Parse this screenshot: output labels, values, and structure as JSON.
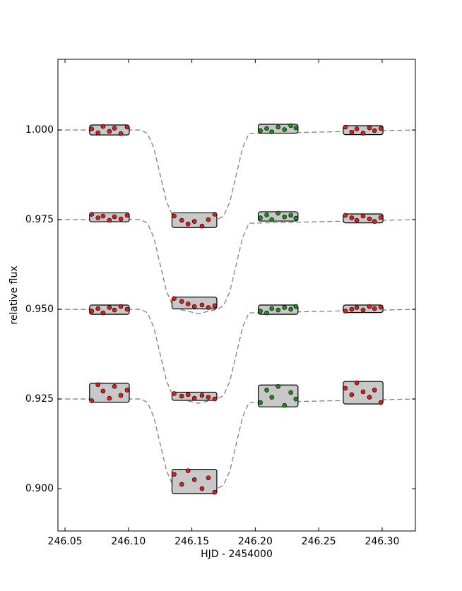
{
  "chart_data": {
    "type": "scatter",
    "xlabel": "HJD - 2454000",
    "ylabel": "relative flux",
    "xlim": [
      246.0444,
      246.3262
    ],
    "ylim": [
      0.8882,
      1.0197
    ],
    "xticks": [
      246.05,
      {
        "value": 246.1,
        "label": "246.10"
      },
      246.15,
      {
        "value": 246.2,
        "label": "246.20"
      },
      246.25,
      {
        "value": 246.3,
        "label": "246.30"
      }
    ],
    "yticks": [
      {
        "value": 0.9,
        "label": "0.900"
      },
      {
        "value": 0.925,
        "label": "0.925"
      },
      {
        "value": 0.95,
        "label": "0.950"
      },
      {
        "value": 0.975,
        "label": "0.975"
      },
      {
        "value": 1,
        "label": "1.000"
      }
    ],
    "series": [
      {
        "type": "line",
        "color": "#808080",
        "x": [
          246.044,
          246.11,
          246.115,
          246.12,
          246.125,
          246.13,
          246.135,
          246.14,
          246.155,
          246.17,
          246.175,
          246.18,
          246.185,
          246.19,
          246.195,
          246.326
        ],
        "values": [
          1,
          1,
          0.999,
          0.995,
          0.9875,
          0.98,
          0.976,
          0.975,
          0.9738,
          0.975,
          0.976,
          0.98,
          0.9875,
          0.995,
          0.999,
          1
        ]
      },
      {
        "type": "line",
        "color": "#808080",
        "x": [
          246.044,
          246.11,
          246.115,
          246.12,
          246.125,
          246.13,
          246.135,
          246.14,
          246.155,
          246.17,
          246.175,
          246.18,
          246.185,
          246.19,
          246.195,
          246.326
        ],
        "values": [
          0.975,
          0.975,
          0.974,
          0.97,
          0.9625,
          0.955,
          0.951,
          0.95,
          0.9488,
          0.95,
          0.951,
          0.955,
          0.9625,
          0.97,
          0.974,
          0.975
        ]
      },
      {
        "type": "line",
        "color": "#808080",
        "x": [
          246.044,
          246.11,
          246.115,
          246.12,
          246.125,
          246.13,
          246.135,
          246.14,
          246.155,
          246.17,
          246.175,
          246.18,
          246.185,
          246.19,
          246.195,
          246.326
        ],
        "values": [
          0.95,
          0.95,
          0.949,
          0.945,
          0.9375,
          0.93,
          0.926,
          0.925,
          0.9238,
          0.925,
          0.926,
          0.93,
          0.9375,
          0.945,
          0.949,
          0.95
        ]
      },
      {
        "type": "line",
        "color": "#808080",
        "x": [
          246.044,
          246.11,
          246.115,
          246.12,
          246.125,
          246.13,
          246.135,
          246.14,
          246.155,
          246.17,
          246.175,
          246.18,
          246.185,
          246.19,
          246.195,
          246.326
        ],
        "values": [
          0.925,
          0.925,
          0.924,
          0.92,
          0.9125,
          0.905,
          0.901,
          0.9,
          0.8988,
          0.9,
          0.901,
          0.905,
          0.9125,
          0.92,
          0.924,
          0.925
        ]
      },
      {
        "color": "#dd1c1c",
        "x": [
          246.071,
          246.076,
          246.08,
          246.085,
          246.089,
          246.094,
          246.099
        ],
        "values": [
          1.0003,
          0.9992,
          1.001,
          0.9996,
          1.0005,
          0.999,
          1.0008
        ]
      },
      {
        "color": "#dd1c1c",
        "x": [
          246.136,
          246.142,
          246.147,
          246.152,
          246.158,
          246.163,
          246.168
        ],
        "values": [
          0.976,
          0.9748,
          0.9738,
          0.9745,
          0.9732,
          0.975,
          0.9765
        ]
      },
      {
        "color": "#1f8a1f",
        "x": [
          246.204,
          246.209,
          246.213,
          246.218,
          246.223,
          246.228,
          246.232
        ],
        "values": [
          0.9998,
          1.0004,
          0.9995,
          1.0008,
          1.0001,
          1.0012,
          1.0006
        ]
      },
      {
        "color": "#dd1c1c",
        "x": [
          246.271,
          246.276,
          246.28,
          246.285,
          246.29,
          246.294,
          246.299
        ],
        "values": [
          1.0008,
          0.9994,
          1.0003,
          0.9991,
          1.0006,
          0.9998,
          1.0004
        ]
      },
      {
        "color": "#dd1c1c",
        "x": [
          246.071,
          246.076,
          246.08,
          246.085,
          246.089,
          246.094,
          246.099
        ],
        "values": [
          0.9765,
          0.9755,
          0.976,
          0.9748,
          0.9758,
          0.9752,
          0.9762
        ]
      },
      {
        "color": "#dd1c1c",
        "x": [
          246.136,
          246.142,
          246.147,
          246.152,
          246.158,
          246.163,
          246.168
        ],
        "values": [
          0.953,
          0.9522,
          0.9515,
          0.9508,
          0.9512,
          0.9505,
          0.951
        ]
      },
      {
        "color": "#1f8a1f",
        "x": [
          246.204,
          246.209,
          246.213,
          246.218,
          246.223,
          246.228,
          246.232
        ],
        "values": [
          0.9755,
          0.9763,
          0.975,
          0.9768,
          0.9758,
          0.9762,
          0.9754
        ]
      },
      {
        "color": "#dd1c1c",
        "x": [
          246.271,
          246.276,
          246.28,
          246.285,
          246.29,
          246.294,
          246.299
        ],
        "values": [
          0.9762,
          0.9755,
          0.9748,
          0.976,
          0.9752,
          0.9745,
          0.9756
        ]
      },
      {
        "color": "#dd1c1c",
        "x": [
          246.071,
          246.076,
          246.08,
          246.085,
          246.089,
          246.094,
          246.099
        ],
        "values": [
          0.9495,
          0.9502,
          0.949,
          0.9505,
          0.9498,
          0.9508,
          0.95
        ]
      },
      {
        "color": "#dd1c1c",
        "x": [
          246.136,
          246.142,
          246.147,
          246.152,
          246.158,
          246.163,
          246.168
        ],
        "values": [
          0.9265,
          0.9258,
          0.9262,
          0.9252,
          0.926,
          0.9255,
          0.925
        ]
      },
      {
        "color": "#1f8a1f",
        "x": [
          246.204,
          246.209,
          246.213,
          246.218,
          246.223,
          246.228,
          246.232
        ],
        "values": [
          0.9495,
          0.949,
          0.9502,
          0.9498,
          0.9505,
          0.95,
          0.9508
        ]
      },
      {
        "color": "#dd1c1c",
        "x": [
          246.271,
          246.276,
          246.28,
          246.285,
          246.29,
          246.294,
          246.299
        ],
        "values": [
          0.9495,
          0.95,
          0.9505,
          0.9498,
          0.9508,
          0.9502,
          0.9506
        ]
      },
      {
        "color": "#dd1c1c",
        "x": [
          246.071,
          246.076,
          246.08,
          246.085,
          246.089,
          246.094,
          246.099
        ],
        "values": [
          0.9245,
          0.929,
          0.9272,
          0.9252,
          0.9285,
          0.926,
          0.9275
        ]
      },
      {
        "color": "#dd1c1c",
        "x": [
          246.136,
          246.142,
          246.147,
          246.152,
          246.158,
          246.163,
          246.168
        ],
        "values": [
          0.904,
          0.9012,
          0.905,
          0.9025,
          0.9,
          0.903,
          0.899
        ]
      },
      {
        "color": "#1f8a1f",
        "x": [
          246.204,
          246.209,
          246.213,
          246.218,
          246.223,
          246.228,
          246.232
        ],
        "values": [
          0.924,
          0.9275,
          0.9255,
          0.9285,
          0.9232,
          0.9268,
          0.925
        ]
      },
      {
        "color": "#dd1c1c",
        "x": [
          246.271,
          246.276,
          246.28,
          246.285,
          246.29,
          246.294,
          246.299
        ],
        "values": [
          0.928,
          0.9262,
          0.9295,
          0.927,
          0.9255,
          0.9275,
          0.924
        ]
      }
    ]
  }
}
